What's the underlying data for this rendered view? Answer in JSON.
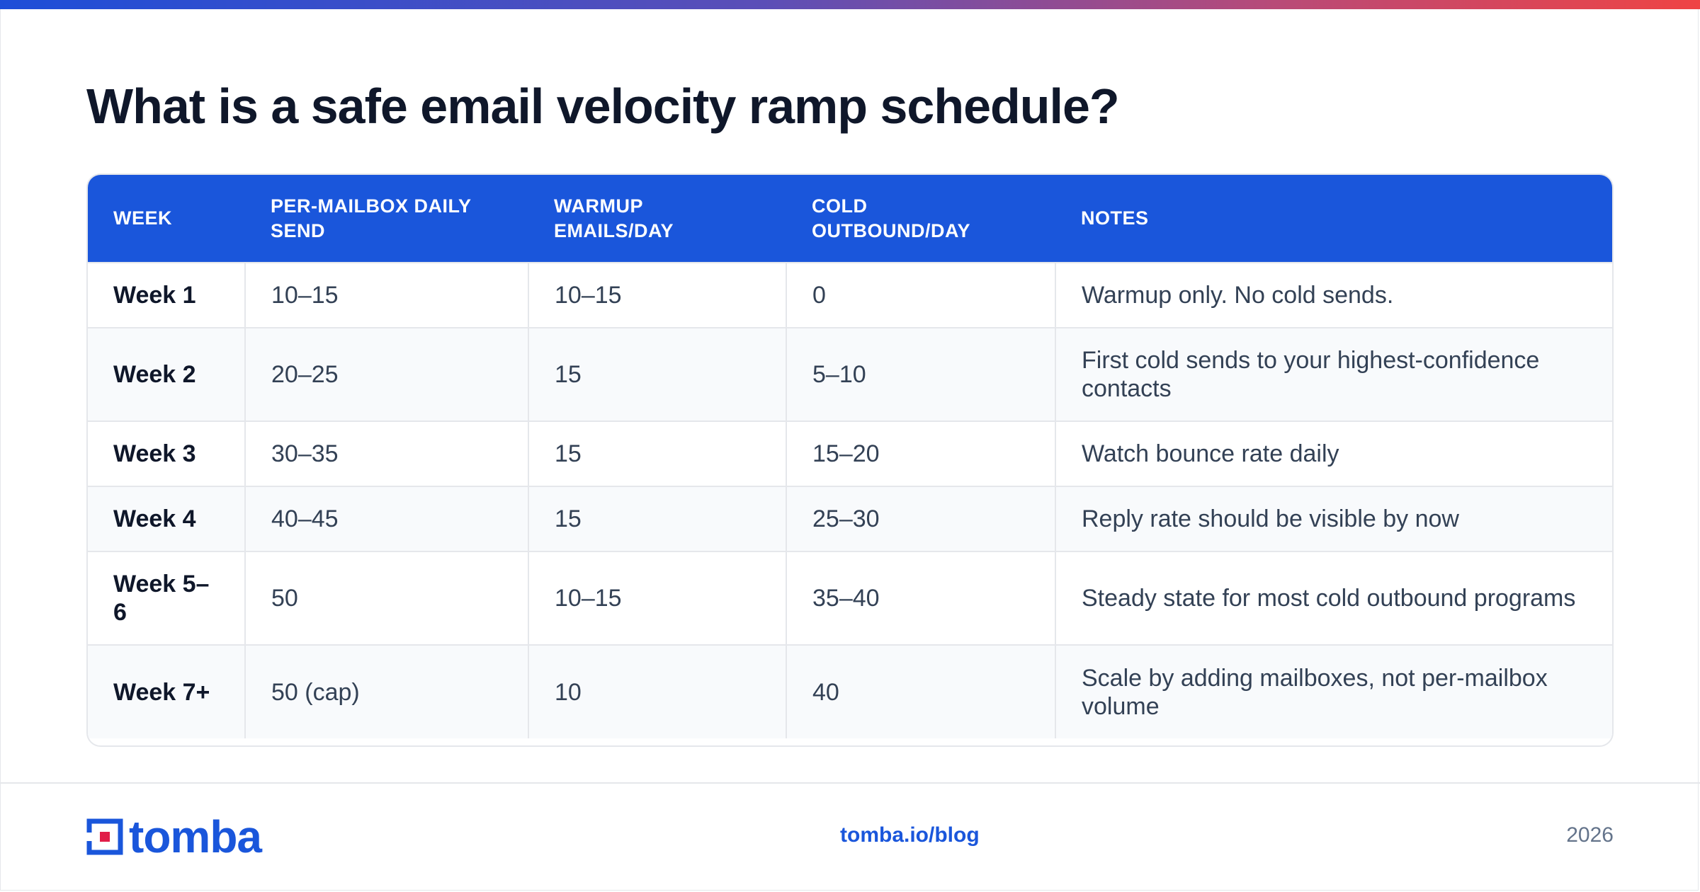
{
  "title": "What is a safe email velocity ramp schedule?",
  "table": {
    "headers": [
      "WEEK",
      "PER-MAILBOX DAILY SEND",
      "WARMUP EMAILS/DAY",
      "COLD OUTBOUND/DAY",
      "NOTES"
    ],
    "rows": [
      [
        "Week 1",
        "10–15",
        "10–15",
        "0",
        "Warmup only. No cold sends."
      ],
      [
        "Week 2",
        "20–25",
        "15",
        "5–10",
        "First cold sends to your highest-confidence contacts"
      ],
      [
        "Week 3",
        "30–35",
        "15",
        "15–20",
        "Watch bounce rate daily"
      ],
      [
        "Week 4",
        "40–45",
        "15",
        "25–30",
        "Reply rate should be visible by now"
      ],
      [
        "Week 5–6",
        "50",
        "10–15",
        "35–40",
        "Steady state for most cold outbound programs"
      ],
      [
        "Week 7+",
        "50 (cap)",
        "10",
        "40",
        "Scale by adding mailboxes, not per-mailbox volume"
      ]
    ]
  },
  "footer": {
    "logo_text": "tomba",
    "link": "tomba.io/blog",
    "year": "2026"
  },
  "colors": {
    "accent": "#1a56db",
    "logo_red": "#e11d48"
  }
}
